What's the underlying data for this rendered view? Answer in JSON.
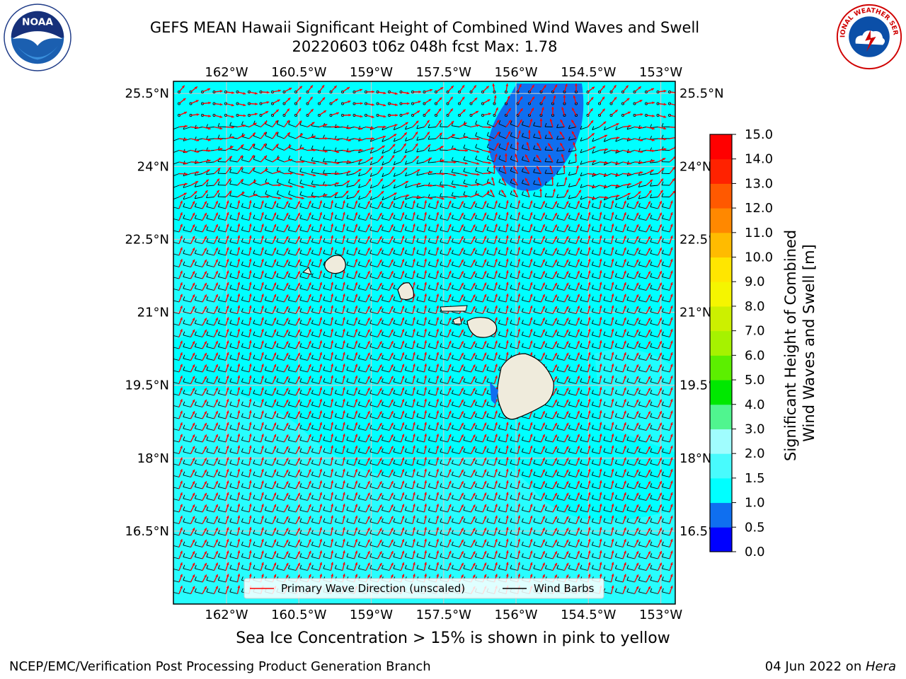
{
  "header": {
    "title_line1": "GEFS MEAN Hawaii Significant Height of Combined Wind Waves and Swell",
    "title_line2": "20220603 t06z 048h fcst   Max: 1.78"
  },
  "map": {
    "lon_labels": [
      "162°W",
      "160.5°W",
      "159°W",
      "157.5°W",
      "156°W",
      "154.5°W",
      "153°W"
    ],
    "lat_labels": [
      "25.5°N",
      "24°N",
      "22.5°N",
      "21°N",
      "19.5°N",
      "18°N",
      "16.5°N"
    ],
    "lon_values": [
      -162,
      -160.5,
      -159,
      -157.5,
      -156,
      -154.5,
      -153
    ],
    "lat_values": [
      25.5,
      24,
      22.5,
      21,
      19.5,
      18,
      16.5
    ],
    "extent": {
      "lon_min": -163.1,
      "lon_max": -152.7,
      "lat_min": 15.0,
      "lat_max": 25.75
    },
    "ocean_color": "#00ffff",
    "land_color": "#efebdc",
    "wave_arrow_color": "#ff0000",
    "barb_color": "#000000"
  },
  "legend": {
    "wave_label": "Primary Wave Direction (unscaled)",
    "barb_label": "Wind Barbs"
  },
  "colorbar": {
    "title_line1": "Significant Height of Combined",
    "title_line2": "Wind Waves and Swell [m]",
    "ticks": [
      "0.0",
      "0.5",
      "1.0",
      "1.5",
      "2.0",
      "3.0",
      "4.0",
      "5.0",
      "6.0",
      "7.0",
      "8.0",
      "9.0",
      "10.0",
      "11.0",
      "12.0",
      "13.0",
      "14.0",
      "15.0"
    ],
    "colors": [
      "#0000ff",
      "#0f6ff0",
      "#00ffff",
      "#48fbfd",
      "#a0fdfe",
      "#50f58f",
      "#00e800",
      "#5cef00",
      "#a6f200",
      "#ccf000",
      "#f5f500",
      "#ffe600",
      "#ffbb00",
      "#ff8800",
      "#ff5900",
      "#ff2200",
      "#ff0000"
    ]
  },
  "caption": "Sea Ice Concentration > 15% is shown in pink to yellow",
  "footer": {
    "left": "NCEP/EMC/Verification Post Processing Product Generation Branch",
    "right_prefix": "04 Jun 2022 on ",
    "right_host": "Hera"
  },
  "logos": {
    "noaa_text": "NOAA",
    "nws_text": "NATIONAL WEATHER SERVICE"
  }
}
